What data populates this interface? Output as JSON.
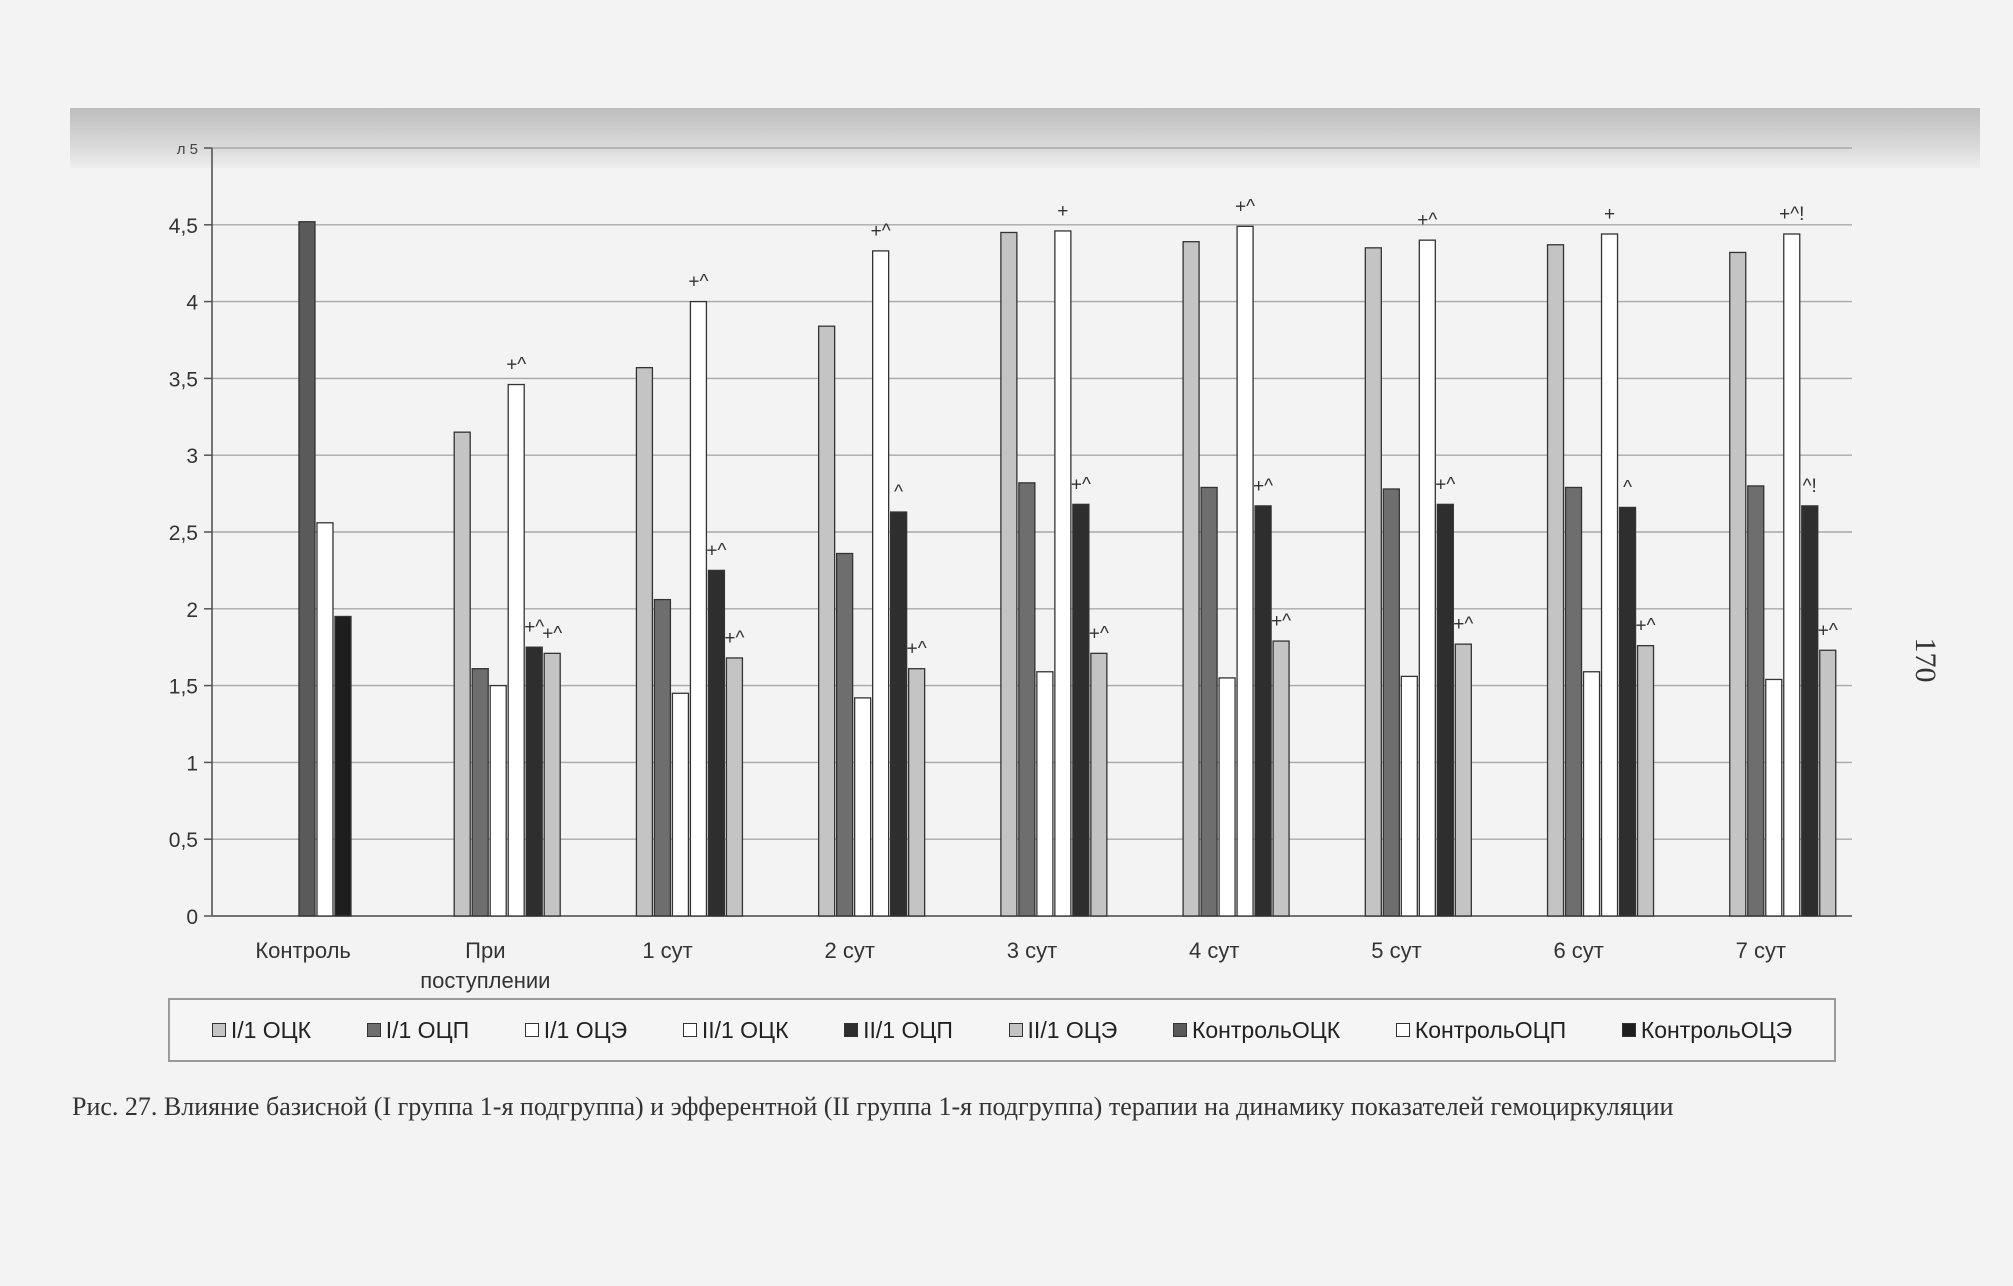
{
  "page_number": "170",
  "caption": "Рис. 27. Влияние базисной (I группа 1-я подгруппа) и эфферентной (II группа 1-я подгруппа) терапии на динамику показателей гемоциркуляции",
  "chart_data": {
    "type": "bar",
    "y_axis_label": "л",
    "ylim": [
      0,
      5
    ],
    "y_ticks": [
      "0",
      "0,5",
      "1",
      "1,5",
      "2",
      "2,5",
      "3",
      "3,5",
      "4",
      "4,5",
      "5"
    ],
    "grid": true,
    "legend_position": "bottom",
    "categories": [
      "Контроль",
      "При поступлении",
      "1 сут",
      "2 сут",
      "3 сут",
      "4 сут",
      "5 сут",
      "6 сут",
      "7 сут"
    ],
    "series": [
      {
        "name": "I/1 ОЦК",
        "color": "#c4c4c4",
        "values": [
          null,
          3.15,
          3.57,
          3.84,
          4.45,
          4.39,
          4.35,
          4.37,
          4.32
        ]
      },
      {
        "name": "I/1 ОЦП",
        "color": "#6e6e6e",
        "values": [
          null,
          1.61,
          2.06,
          2.36,
          2.82,
          2.79,
          2.78,
          2.79,
          2.8
        ]
      },
      {
        "name": "I/1 ОЦЭ",
        "color": "#ffffff",
        "values": [
          null,
          1.5,
          1.45,
          1.42,
          1.59,
          1.55,
          1.56,
          1.59,
          1.54
        ]
      },
      {
        "name": "II/1  ОЦК",
        "color": "#ffffff",
        "values": [
          null,
          3.46,
          4.0,
          4.33,
          4.46,
          4.49,
          4.4,
          4.44,
          4.44
        ]
      },
      {
        "name": "II/1  ОЦП",
        "color": "#2e2e2e",
        "values": [
          null,
          1.75,
          2.25,
          2.63,
          2.68,
          2.67,
          2.68,
          2.66,
          2.67
        ]
      },
      {
        "name": "II/1  ОЦЭ",
        "color": "#c4c4c4",
        "values": [
          null,
          1.71,
          1.68,
          1.61,
          1.71,
          1.79,
          1.77,
          1.76,
          1.73
        ]
      },
      {
        "name": "КонтрольОЦК",
        "color": "#5a5a5a",
        "values": [
          4.52,
          null,
          null,
          null,
          null,
          null,
          null,
          null,
          null
        ]
      },
      {
        "name": "КонтрольОЦП",
        "color": "#ffffff",
        "values": [
          2.56,
          null,
          null,
          null,
          null,
          null,
          null,
          null,
          null
        ]
      },
      {
        "name": "КонтрольОЦЭ",
        "color": "#1e1e1e",
        "values": [
          1.95,
          null,
          null,
          null,
          null,
          null,
          null,
          null,
          null
        ]
      }
    ],
    "annotations": [
      {
        "category": 1,
        "series": 3,
        "text": "+^"
      },
      {
        "category": 1,
        "series": 4,
        "text": "+^"
      },
      {
        "category": 1,
        "series": 5,
        "text": "+^"
      },
      {
        "category": 2,
        "series": 3,
        "text": "+^"
      },
      {
        "category": 2,
        "series": 4,
        "text": "+^"
      },
      {
        "category": 2,
        "series": 5,
        "text": "+^"
      },
      {
        "category": 3,
        "series": 3,
        "text": "+^"
      },
      {
        "category": 3,
        "series": 4,
        "text": "^"
      },
      {
        "category": 3,
        "series": 5,
        "text": "+^"
      },
      {
        "category": 4,
        "series": 3,
        "text": "+"
      },
      {
        "category": 4,
        "series": 4,
        "text": "+^"
      },
      {
        "category": 4,
        "series": 5,
        "text": "+^"
      },
      {
        "category": 5,
        "series": 3,
        "text": "+^"
      },
      {
        "category": 5,
        "series": 4,
        "text": "+^"
      },
      {
        "category": 5,
        "series": 5,
        "text": "+^"
      },
      {
        "category": 6,
        "series": 3,
        "text": "+^"
      },
      {
        "category": 6,
        "series": 4,
        "text": "+^"
      },
      {
        "category": 6,
        "series": 5,
        "text": "+^"
      },
      {
        "category": 7,
        "series": 3,
        "text": "+"
      },
      {
        "category": 7,
        "series": 4,
        "text": "^"
      },
      {
        "category": 7,
        "series": 5,
        "text": "+^"
      },
      {
        "category": 8,
        "series": 3,
        "text": "+^!"
      },
      {
        "category": 8,
        "series": 4,
        "text": "^!"
      },
      {
        "category": 8,
        "series": 5,
        "text": "+^"
      }
    ]
  }
}
